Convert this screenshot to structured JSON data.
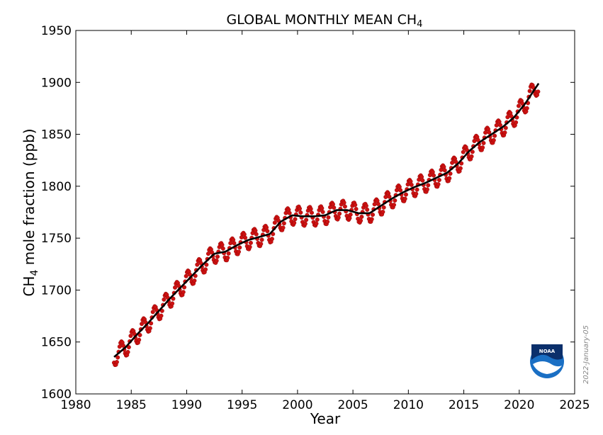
{
  "chart_data": {
    "type": "scatter",
    "title_main": "GLOBAL MONTHLY MEAN CH",
    "title_sub": "4",
    "ylabel_main": "CH",
    "ylabel_sub": "4",
    "ylabel_rest": " mole fraction (ppb)",
    "xlabel": "Year",
    "xlim": [
      1980,
      2025
    ],
    "ylim": [
      1600,
      1950
    ],
    "xticks": [
      1980,
      1985,
      1990,
      1995,
      2000,
      2005,
      2010,
      2015,
      2020,
      2025
    ],
    "yticks": [
      1600,
      1650,
      1700,
      1750,
      1800,
      1850,
      1900,
      1950
    ],
    "grid": false,
    "series": [
      {
        "kind": "monthly-mean",
        "color": "#cc1111",
        "marker": "circle",
        "seasonal_amplitude": 9,
        "x": [
          1983.5,
          1984.5,
          1985.5,
          1986.5,
          1987.5,
          1988.5,
          1989.5,
          1990.5,
          1991.5,
          1992.5,
          1993.5,
          1994.5,
          1995.5,
          1996.5,
          1997.5,
          1998.5,
          1999.5,
          2000.5,
          2001.5,
          2002.5,
          2003.5,
          2004.5,
          2005.5,
          2006.5,
          2007.5,
          2008.5,
          2009.5,
          2010.5,
          2011.5,
          2012.5,
          2013.5,
          2014.5,
          2015.5,
          2016.5,
          2017.5,
          2018.5,
          2019.5,
          2020.5,
          2021.5
        ],
        "y": [
          1636,
          1645,
          1657,
          1668,
          1680,
          1692,
          1703,
          1714,
          1725,
          1735,
          1737,
          1743,
          1748,
          1751,
          1754,
          1766,
          1772,
          1771,
          1771,
          1772,
          1777,
          1777,
          1774,
          1774,
          1781,
          1788,
          1794,
          1799,
          1803,
          1808,
          1813,
          1822,
          1834,
          1843,
          1850,
          1857,
          1866,
          1879,
          1895
        ]
      },
      {
        "kind": "long-term-trend",
        "color": "#000000",
        "x": [
          1983.5,
          1984.5,
          1985.5,
          1986.5,
          1987.5,
          1988.5,
          1989.5,
          1990.5,
          1991.5,
          1992.5,
          1993.5,
          1994.5,
          1995.5,
          1996.5,
          1997.5,
          1998.5,
          1999.5,
          2000.5,
          2001.5,
          2002.5,
          2003.5,
          2004.5,
          2005.5,
          2006.5,
          2007.5,
          2008.5,
          2009.5,
          2010.5,
          2011.5,
          2012.5,
          2013.5,
          2014.5,
          2015.5,
          2016.5,
          2017.5,
          2018.5,
          2019.5,
          2020.5,
          2021.5
        ],
        "y": [
          1636,
          1645,
          1657,
          1668,
          1680,
          1692,
          1703,
          1714,
          1725,
          1735,
          1737,
          1743,
          1748,
          1751,
          1754,
          1766,
          1772,
          1771,
          1771,
          1772,
          1777,
          1777,
          1774,
          1774,
          1781,
          1788,
          1794,
          1799,
          1803,
          1808,
          1813,
          1822,
          1834,
          1843,
          1850,
          1857,
          1866,
          1879,
          1895
        ]
      }
    ]
  },
  "date_stamp": "2022-January-05",
  "logo": {
    "text": "NOAA",
    "icon": "noaa-logo-icon",
    "color_blue": "#1a6fc4",
    "color_navy": "#0b2f6b"
  }
}
